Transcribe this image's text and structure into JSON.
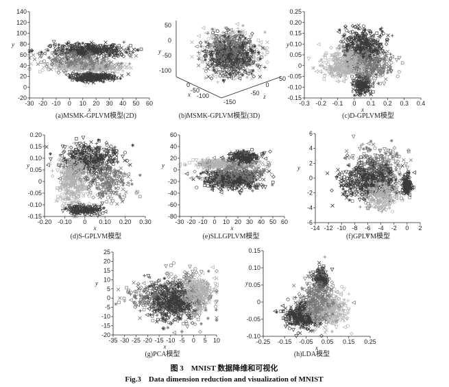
{
  "figure": {
    "caption_cn": "图 3　MNIST 数据降维和可视化",
    "caption_en": "Fig.3　Data dimension reduction and visualization of MNIST"
  },
  "chart_data": [
    {
      "type": "scatter",
      "id": "a",
      "caption": "(a)MSMK-GPLVM模型(2D)",
      "xlabel": "x",
      "ylabel": "y",
      "xlim": [
        -30,
        60
      ],
      "ylim": [
        -20,
        140
      ],
      "xticks": [
        "-30",
        "-20",
        "-10",
        "0",
        "10",
        "20",
        "30",
        "40",
        "50",
        "60"
      ],
      "yticks": [
        "-20",
        "0",
        "20",
        "40",
        "60",
        "80",
        "100",
        "120",
        "140"
      ],
      "clusters": [
        {
          "shade": "dark",
          "cx": 15,
          "cy": 68,
          "rx": 28,
          "ry": 12,
          "n": 420
        },
        {
          "shade": "light",
          "cx": 12,
          "cy": 38,
          "rx": 26,
          "ry": 9,
          "n": 380
        },
        {
          "shade": "dark",
          "cx": 18,
          "cy": 18,
          "rx": 16,
          "ry": 7,
          "n": 260
        },
        {
          "shade": "mid",
          "cx": 5,
          "cy": 50,
          "rx": 30,
          "ry": 18,
          "n": 180
        }
      ]
    },
    {
      "type": "scatter3d",
      "id": "b",
      "caption": "(b)MSMK-GPLVM模型(3D)",
      "xlabel": "x",
      "ylabel": "y",
      "zlabel": "z",
      "yticks": [
        "50",
        "0",
        "-50",
        "-100"
      ],
      "xticks": [
        "0",
        "-50",
        "-100"
      ],
      "zticks": [
        "-50",
        "0",
        "50",
        "-150"
      ],
      "clusters": [
        {
          "shade": "light",
          "cx": 0,
          "cy": 0.45,
          "rx": 0.55,
          "ry": 0.5,
          "n": 380
        },
        {
          "shade": "dark",
          "cx": 0.1,
          "cy": 0.5,
          "rx": 0.5,
          "ry": 0.42,
          "n": 420
        },
        {
          "shade": "mid",
          "cx": -0.1,
          "cy": 0.4,
          "rx": 0.5,
          "ry": 0.45,
          "n": 120
        }
      ]
    },
    {
      "type": "scatter",
      "id": "c",
      "caption": "(c)D-GPLVM模型",
      "xlabel": "x",
      "ylabel": "y",
      "xlim": [
        -0.3,
        0.4
      ],
      "ylim": [
        -0.15,
        0.25
      ],
      "xticks": [
        "-0.3",
        "-0.2",
        "-0.1",
        "0",
        "0.1",
        "0.2",
        "0.3",
        "0.4"
      ],
      "yticks": [
        "-0.15",
        "-0.10",
        "-0.05",
        "0",
        "0.05",
        "0.10",
        "0.15",
        "0.20",
        "0.25"
      ],
      "clusters": [
        {
          "shade": "dark",
          "cx": 0.05,
          "cy": 0.07,
          "rx": 0.13,
          "ry": 0.1,
          "n": 480
        },
        {
          "shade": "light",
          "cx": -0.05,
          "cy": 0.0,
          "rx": 0.15,
          "ry": 0.07,
          "n": 360
        },
        {
          "shade": "dark",
          "cx": 0.05,
          "cy": -0.09,
          "rx": 0.05,
          "ry": 0.04,
          "n": 160
        },
        {
          "shade": "mid",
          "cx": 0.12,
          "cy": 0.0,
          "rx": 0.13,
          "ry": 0.08,
          "n": 160
        }
      ]
    },
    {
      "type": "scatter",
      "id": "d",
      "caption": "(d)S-GPLVM模型",
      "xlabel": "x",
      "ylabel": "y",
      "xlim": [
        -0.2,
        0.3
      ],
      "ylim": [
        -0.15,
        0.2
      ],
      "xticks": [
        "-0.20",
        "-0.10",
        "0",
        "0.10",
        "0.20",
        "0.30"
      ],
      "yticks": [
        "-0.15",
        "-0.10",
        "-0.05",
        "0",
        "0.05",
        "0.10",
        "0.15",
        "0.20"
      ],
      "clusters": [
        {
          "shade": "dark",
          "cx": 0.02,
          "cy": 0.09,
          "rx": 0.14,
          "ry": 0.07,
          "n": 420
        },
        {
          "shade": "light",
          "cx": -0.06,
          "cy": 0.0,
          "rx": 0.08,
          "ry": 0.12,
          "n": 360
        },
        {
          "shade": "dark",
          "cx": 0.0,
          "cy": -0.12,
          "rx": 0.09,
          "ry": 0.02,
          "n": 150
        },
        {
          "shade": "mid",
          "cx": 0.12,
          "cy": 0.0,
          "rx": 0.1,
          "ry": 0.08,
          "n": 200
        }
      ]
    },
    {
      "type": "scatter",
      "id": "e",
      "caption": "(e)SLLGPLVM模型",
      "xlabel": "x",
      "ylabel": "y",
      "xlim": [
        -30,
        60
      ],
      "ylim": [
        -80,
        60
      ],
      "xticks": [
        "-30",
        "-20",
        "-10",
        "0",
        "10",
        "20",
        "30",
        "40",
        "50",
        "60"
      ],
      "yticks": [
        "-80",
        "-60",
        "-40",
        "-20",
        "0",
        "20",
        "40",
        "60"
      ],
      "clusters": [
        {
          "shade": "dark",
          "cx": 15,
          "cy": -15,
          "rx": 24,
          "ry": 18,
          "n": 450
        },
        {
          "shade": "light",
          "cx": 10,
          "cy": 10,
          "rx": 28,
          "ry": 8,
          "n": 380
        },
        {
          "shade": "dark",
          "cx": 25,
          "cy": 22,
          "rx": 15,
          "ry": 10,
          "n": 160
        },
        {
          "shade": "mid",
          "cx": 20,
          "cy": -5,
          "rx": 28,
          "ry": 25,
          "n": 140
        }
      ]
    },
    {
      "type": "scatter",
      "id": "f",
      "caption": "(f)GPLVM模型",
      "xlabel": "x",
      "ylabel": "y",
      "xlim": [
        -14,
        2
      ],
      "ylim": [
        -6,
        6
      ],
      "xticks": [
        "-14",
        "-12",
        "-10",
        "-8",
        "-6",
        "-4",
        "-2",
        "0",
        "2"
      ],
      "yticks": [
        "-6",
        "-4",
        "-2",
        "0",
        "2",
        "4",
        "6"
      ],
      "clusters": [
        {
          "shade": "mid",
          "cx": -4.5,
          "cy": 0.5,
          "rx": 4,
          "ry": 3.5,
          "n": 460
        },
        {
          "shade": "dark",
          "cx": -6,
          "cy": -0.5,
          "rx": 4.5,
          "ry": 2.5,
          "n": 320
        },
        {
          "shade": "dark",
          "cx": 0,
          "cy": -1,
          "rx": 0.6,
          "ry": 1.2,
          "n": 150
        },
        {
          "shade": "light",
          "cx": -4,
          "cy": -2.5,
          "rx": 2.5,
          "ry": 2,
          "n": 160
        }
      ]
    },
    {
      "type": "scatter",
      "id": "g",
      "caption": "(g)PCA模型",
      "xlabel": "x",
      "ylabel": "y",
      "xlim": [
        -35,
        10
      ],
      "ylim": [
        -20,
        25
      ],
      "xticks": [
        "-35",
        "-30",
        "-25",
        "-20",
        "-15",
        "-10",
        "-5",
        "0",
        "5",
        "10"
      ],
      "yticks": [
        "-20",
        "-15",
        "-10",
        "-5",
        "0",
        "5",
        "10",
        "15",
        "20",
        "25"
      ],
      "clusters": [
        {
          "shade": "mid",
          "cx": -5,
          "cy": 0,
          "rx": 12,
          "ry": 12,
          "n": 460
        },
        {
          "shade": "dark",
          "cx": -10,
          "cy": -2,
          "rx": 11,
          "ry": 10,
          "n": 380
        },
        {
          "shade": "light",
          "cx": 2,
          "cy": 3,
          "rx": 7,
          "ry": 10,
          "n": 200
        },
        {
          "shade": "mid",
          "cx": -22,
          "cy": 0,
          "rx": 8,
          "ry": 8,
          "n": 70
        }
      ]
    },
    {
      "type": "scatter",
      "id": "h",
      "caption": "(h)LDA模型",
      "xlabel": "x",
      "ylabel": "y",
      "xlim": [
        -0.25,
        0.25
      ],
      "ylim": [
        -0.1,
        0.15
      ],
      "xticks": [
        "-0.25",
        "-0.15",
        "-0.05",
        "0.05",
        "0.15",
        "0.25"
      ],
      "yticks": [
        "-0.10",
        "-0.05",
        "0",
        "0.05",
        "0.10",
        "0.15"
      ],
      "clusters": [
        {
          "shade": "dark",
          "cx": -0.06,
          "cy": -0.04,
          "rx": 0.08,
          "ry": 0.04,
          "n": 400
        },
        {
          "shade": "light",
          "cx": 0.05,
          "cy": -0.02,
          "rx": 0.09,
          "ry": 0.05,
          "n": 360
        },
        {
          "shade": "dark",
          "cx": 0.02,
          "cy": 0.07,
          "rx": 0.03,
          "ry": 0.03,
          "n": 160
        },
        {
          "shade": "mid",
          "cx": 0.0,
          "cy": 0.01,
          "rx": 0.09,
          "ry": 0.06,
          "n": 200
        }
      ]
    }
  ],
  "colors": {
    "dark": "#3a3a3a",
    "mid": "#777777",
    "light": "#b2b2b2",
    "axis": "#222222"
  }
}
